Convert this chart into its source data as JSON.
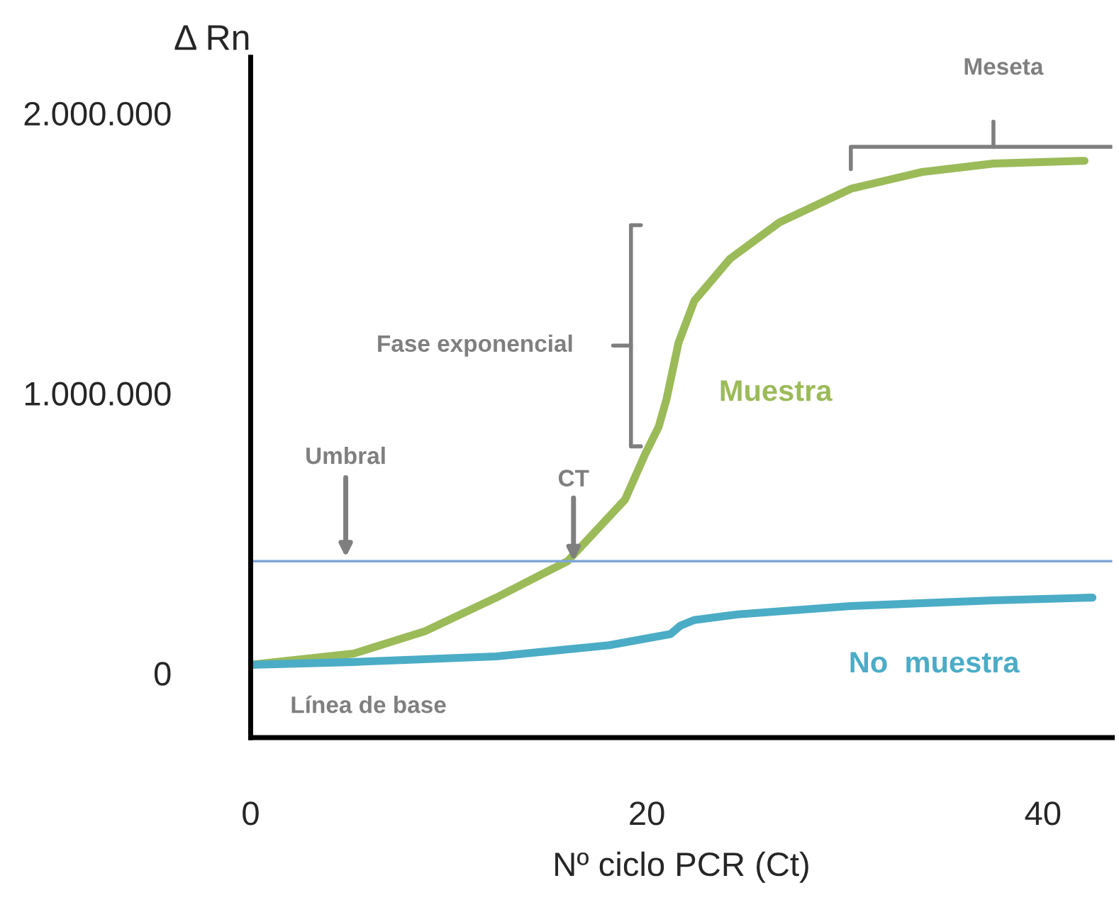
{
  "chart_data": {
    "type": "line",
    "xlabel": "Nº ciclo PCR (Ct)",
    "ylabel": "Δ Rn",
    "xlim": [
      0,
      43.5
    ],
    "ylim": [
      -230000,
      2200000
    ],
    "xticks": [
      0,
      20,
      40
    ],
    "yticks": [
      {
        "value": 0,
        "label": "0"
      },
      {
        "value": 1000000,
        "label": "1.000.000"
      },
      {
        "value": 2000000,
        "label": "2.000.000"
      }
    ],
    "grid": false,
    "legend": false,
    "marker": "none",
    "line_style": "solid",
    "series": [
      {
        "name": "Muestra",
        "color": "#9bbb59",
        "x": [
          0,
          5.2,
          8.8,
          12.4,
          16,
          18.9,
          19.9,
          20.6,
          21,
          21.6,
          22.4,
          24.2,
          26.7,
          30.3,
          33.9,
          37.5,
          42.1
        ],
        "values": [
          30000,
          70000,
          150000,
          270000,
          400000,
          620000,
          780000,
          880000,
          980000,
          1180000,
          1330000,
          1480000,
          1610000,
          1730000,
          1790000,
          1820000,
          1830000
        ]
      },
      {
        "name": "No  muestra",
        "color": "#4bacc6",
        "x": [
          0,
          5.2,
          12.4,
          18.1,
          21.2,
          21.7,
          22.4,
          24.6,
          30.3,
          37.5,
          42.5
        ],
        "values": [
          30000,
          40000,
          60000,
          100000,
          140000,
          170000,
          190000,
          210000,
          240000,
          260000,
          270000
        ]
      }
    ],
    "ref_lines": [
      {
        "axis": "y",
        "value": 400000,
        "label": "Umbral",
        "color": "#7fa7d9",
        "line_style": "solid"
      }
    ],
    "annotations": [
      "Meseta",
      "Fase exponencial",
      "Línea de base",
      {
        "text": "CT",
        "x": 16.3,
        "y": 400000
      }
    ]
  }
}
